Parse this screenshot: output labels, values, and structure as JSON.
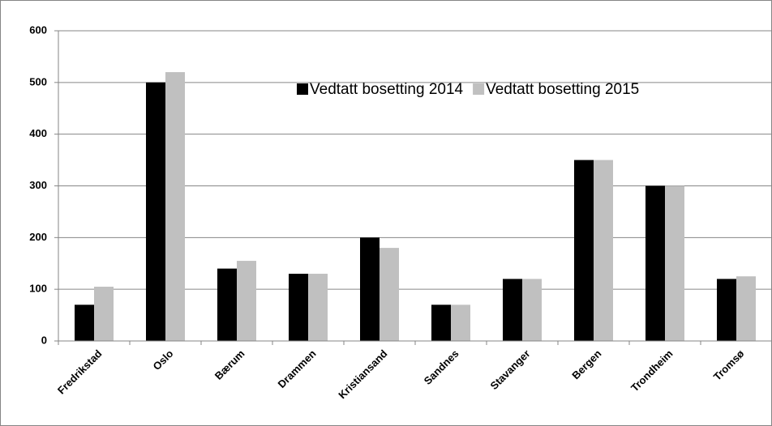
{
  "chart_data": {
    "type": "bar",
    "categories": [
      "Fredrikstad",
      "Oslo",
      "Bærum",
      "Drammen",
      "Kristiansand",
      "Sandnes",
      "Stavanger",
      "Bergen",
      "Trondheim",
      "Tromsø"
    ],
    "series": [
      {
        "name": "Vedtatt bosetting 2014",
        "color": "#000000",
        "values": [
          70,
          500,
          140,
          130,
          200,
          70,
          120,
          350,
          300,
          120
        ]
      },
      {
        "name": "Vedtatt bosetting 2015",
        "color": "#c0c0c0",
        "values": [
          105,
          520,
          155,
          130,
          180,
          70,
          120,
          350,
          300,
          125
        ]
      }
    ],
    "ylim": [
      0,
      600
    ],
    "yticks": [
      0,
      100,
      200,
      300,
      400,
      500,
      600
    ],
    "grid": true,
    "legend": "top-right"
  }
}
